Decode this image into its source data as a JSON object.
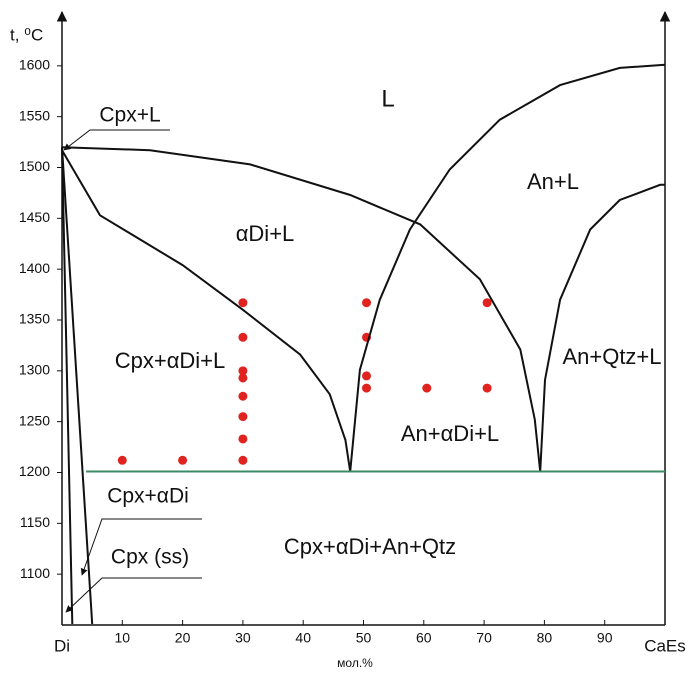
{
  "chart_data": {
    "type": "scatter",
    "ylabel": "t, ⁰C",
    "xlabel": "мол.%",
    "xlim": [
      0,
      100
    ],
    "ylim": [
      1050,
      1650
    ],
    "xticks": [
      {
        "value": 0,
        "label": "Di"
      },
      10,
      20,
      30,
      40,
      50,
      60,
      70,
      80,
      90,
      {
        "value": 100,
        "label": "CaEs"
      }
    ],
    "yticks": [
      1100,
      1150,
      1200,
      1250,
      1300,
      1350,
      1400,
      1450,
      1500,
      1550,
      1600
    ],
    "series": [
      {
        "type": "scatter",
        "color": "#e0231f",
        "x": [
          10,
          20,
          30,
          30,
          30,
          30,
          30,
          30,
          30,
          30,
          50.5,
          50.5,
          50.5,
          50.5,
          60.5,
          70.5,
          70.5
        ],
        "values": [
          1212,
          1212,
          1212,
          1233,
          1255,
          1275,
          1293,
          1300,
          1333,
          1367,
          1367,
          1333,
          1295,
          1283,
          1283,
          1283,
          1367
        ]
      },
      {
        "type": "line",
        "color": "#111111",
        "x": [
          0,
          6.3,
          20,
          30,
          39.5,
          44.4,
          47,
          47.8
        ],
        "values": [
          1517,
          1453,
          1404,
          1360,
          1316,
          1277,
          1232,
          1201
        ]
      },
      {
        "type": "line",
        "color": "#111111",
        "x": [
          0,
          14.6,
          31.2,
          47.8,
          59.4,
          69.3,
          76,
          78.4,
          79.3
        ],
        "values": [
          1520,
          1517,
          1503,
          1473,
          1444,
          1390,
          1321,
          1252,
          1201
        ]
      },
      {
        "type": "line",
        "color": "#111111",
        "x": [
          47.8,
          49.4,
          52.7,
          57.7,
          64.3,
          72.6,
          82.6,
          92.5,
          100
        ],
        "values": [
          1201,
          1301,
          1370,
          1439,
          1498,
          1547,
          1581,
          1598,
          1601
        ]
      },
      {
        "type": "line",
        "color": "#111111",
        "x": [
          79.3,
          80.1,
          82.6,
          87.6,
          92.5,
          99.2,
          100
        ],
        "values": [
          1201,
          1291,
          1370,
          1439,
          1468,
          1483,
          1483
        ]
      },
      {
        "type": "line",
        "color": "#111111",
        "x": [
          0,
          1.7
        ],
        "values": [
          1520,
          1051
        ]
      },
      {
        "type": "line",
        "color": "#111111",
        "x": [
          0,
          5
        ],
        "values": [
          1520,
          1051
        ]
      },
      {
        "type": "line",
        "color": "#3a8a66",
        "x": [
          4,
          100
        ],
        "values": [
          1201,
          1201
        ]
      }
    ],
    "regions": [
      "L",
      "An+L",
      "αDi+L",
      "Cpx+αDi+L",
      "An+Qtz+L",
      "An+αDi+L",
      "Cpx+αDi+An+Qtz",
      "Cpx+L",
      "Cpx+αDi",
      "Cpx (ss)"
    ]
  }
}
